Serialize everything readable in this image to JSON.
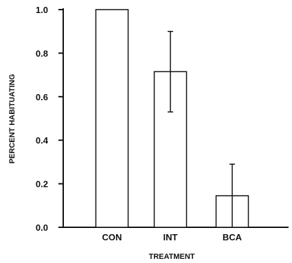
{
  "chart_data": {
    "type": "bar",
    "categories": [
      "CON",
      "INT",
      "BCA"
    ],
    "values": [
      1.0,
      0.715,
      0.145
    ],
    "error_upper": [
      1.0,
      0.9,
      0.29
    ],
    "error_lower": [
      1.0,
      0.53,
      0.0
    ],
    "xlabel": "TREATMENT",
    "ylabel": "PERCENT HABITUATING",
    "ylim": [
      0.0,
      1.0
    ],
    "yticks": [
      0.0,
      0.2,
      0.4,
      0.6,
      0.8,
      1.0
    ],
    "ytick_labels": [
      "0.0",
      "0.2",
      "0.4",
      "0.6",
      "0.8",
      "1.0"
    ],
    "grid": false,
    "colors": {
      "bar_fill": "#ffffff",
      "stroke": "#111111",
      "background": "#ffffff"
    }
  }
}
